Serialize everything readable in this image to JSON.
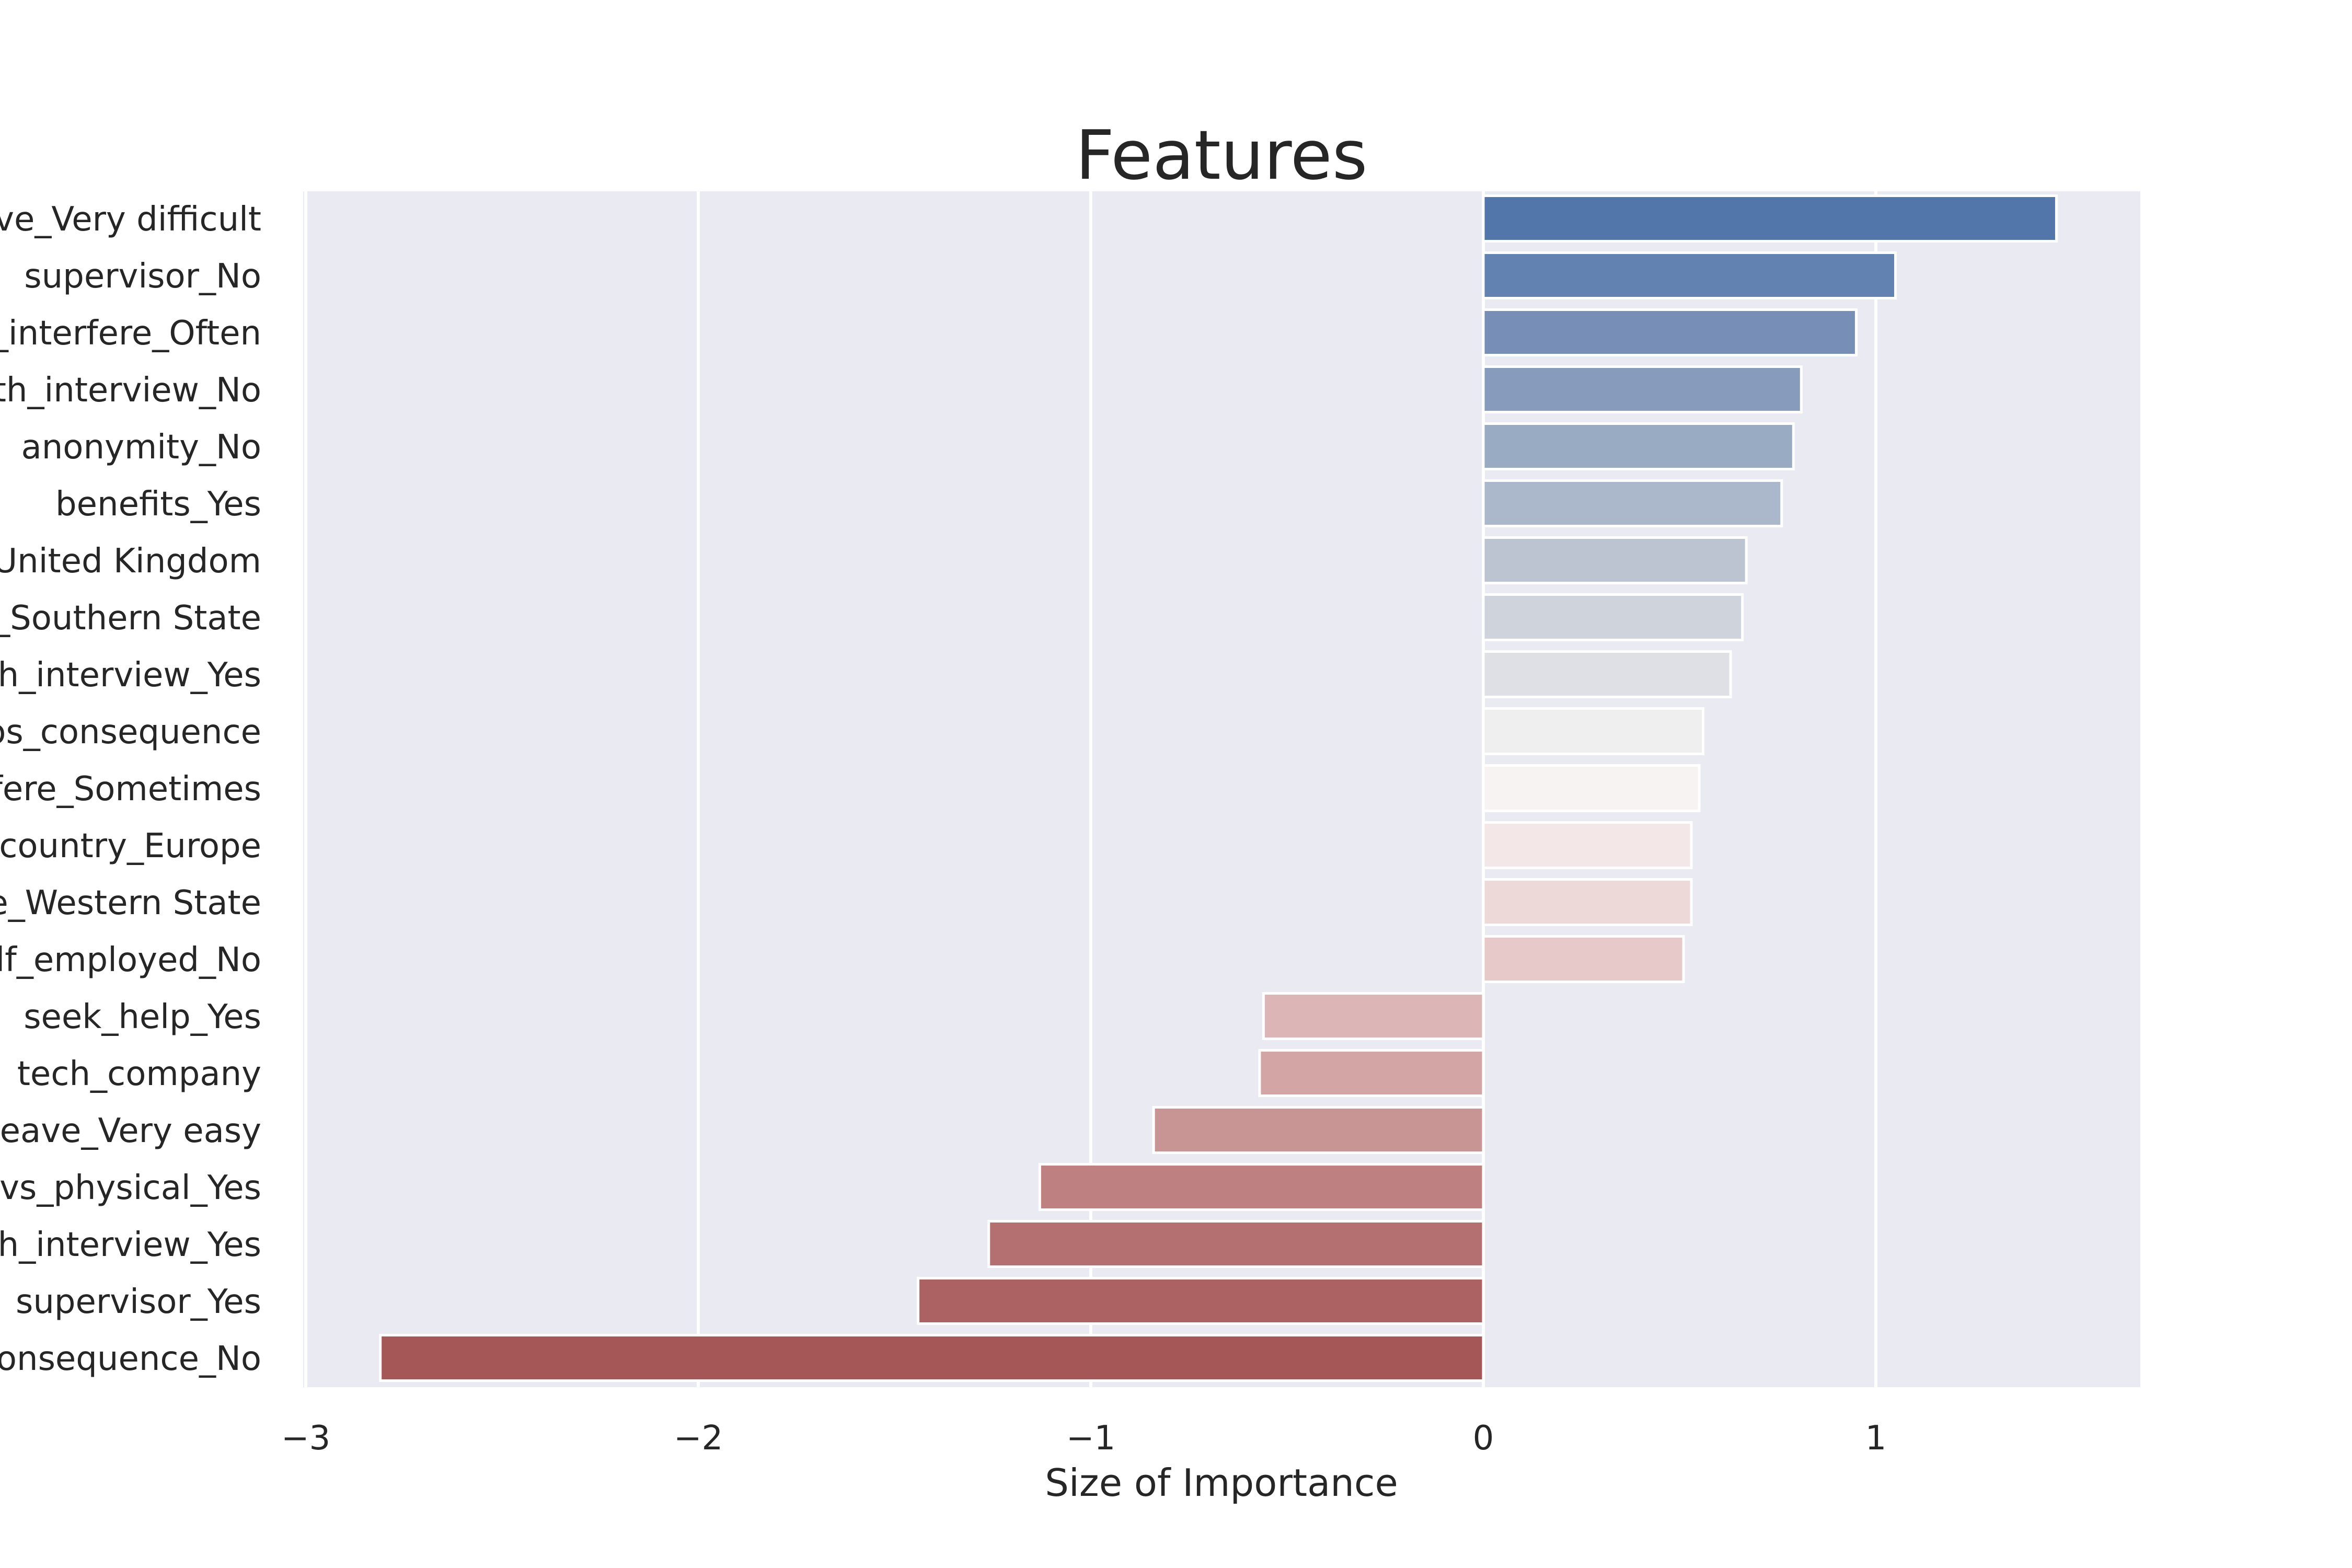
{
  "chart_data": {
    "type": "bar",
    "orientation": "horizontal",
    "title": "Features",
    "xlabel": "Size of Importance",
    "ylabel": "",
    "xlim": [
      -3.0,
      1.7
    ],
    "xticks": [
      -3,
      -2,
      -1,
      0,
      1
    ],
    "xtick_labels": [
      "−3",
      "−2",
      "−1",
      "0",
      "1"
    ],
    "grid": true,
    "categories": [
      "ave_Very difficult",
      "supervisor_No",
      "_interfere_Often",
      "th_interview_No",
      "anonymity_No",
      "benefits_Yes",
      "_United Kingdom",
      "_Southern State",
      "h_interview_Yes",
      "os_consequence",
      "fere_Sometimes",
      "country_Europe",
      "e_Western State",
      "lf_employed_No",
      "seek_help_Yes",
      "tech_company",
      "eave_Very easy",
      "vs_physical_Yes",
      "h_interview_Yes",
      "supervisor_Yes",
      "onsequence_No"
    ],
    "values": [
      1.46,
      1.05,
      0.95,
      0.81,
      0.79,
      0.76,
      0.67,
      0.66,
      0.63,
      0.56,
      0.55,
      0.53,
      0.53,
      0.51,
      -0.56,
      -0.57,
      -0.84,
      -1.13,
      -1.26,
      -1.44,
      -2.81
    ],
    "colors": [
      "#5275aa",
      "#6283b2",
      "#778fb6",
      "#879cbc",
      "#99aac3",
      "#abb8cb",
      "#bcc4d2",
      "#ced3dc",
      "#dfe0e5",
      "#efeff0",
      "#f8f3f3",
      "#f4e7e7",
      "#eed9d9",
      "#e7c9c9",
      "#dcb6b6",
      "#d3a5a5",
      "#c89494",
      "#be8080",
      "#b47070",
      "#ac6262",
      "#a55656"
    ],
    "background_color": "#eaeaf2"
  }
}
